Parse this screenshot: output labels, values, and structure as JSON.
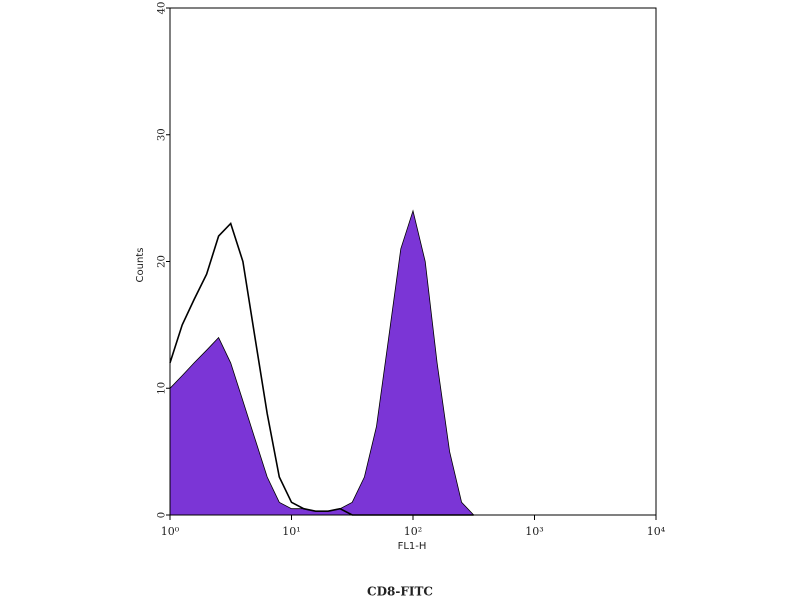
{
  "chart_data": {
    "type": "histogram",
    "title": "CD8-FITC",
    "xlabel": "FL1-H",
    "ylabel": "Counts",
    "log_x": true,
    "x": [
      1,
      1.26,
      1.58,
      2.0,
      2.51,
      3.16,
      3.98,
      5.01,
      6.31,
      7.94,
      10,
      12.6,
      15.8,
      20,
      25.1,
      31.6,
      39.8,
      50.1,
      63.1,
      79.4,
      100,
      126,
      158,
      200,
      251,
      316
    ],
    "series": [
      {
        "color": "#7b35d6",
        "values": [
          10,
          11,
          12,
          13,
          14,
          12,
          9,
          6,
          3,
          1,
          0.5,
          0.5,
          0.3,
          0.3,
          0.5,
          1,
          3,
          7,
          14,
          21,
          24,
          20,
          12,
          5,
          1,
          0
        ]
      },
      {
        "color": "#000000",
        "values": [
          12,
          15,
          17,
          19,
          22,
          23,
          20,
          14,
          8,
          3,
          1,
          0.5,
          0.3,
          0.3,
          0.5,
          0,
          0,
          0,
          0,
          0,
          0,
          0,
          0,
          0,
          0,
          0
        ]
      }
    ],
    "xlim": [
      1,
      10000
    ],
    "xticks": [
      {
        "value": 1,
        "label": "10⁰"
      },
      {
        "value": 10,
        "label": "10¹"
      },
      {
        "value": 100,
        "label": "10²"
      },
      {
        "value": 1000,
        "label": "10³"
      },
      {
        "value": 10000,
        "label": "10⁴"
      }
    ],
    "ylim": [
      0,
      40
    ],
    "yticks": [
      0,
      10,
      20,
      30,
      40
    ]
  }
}
